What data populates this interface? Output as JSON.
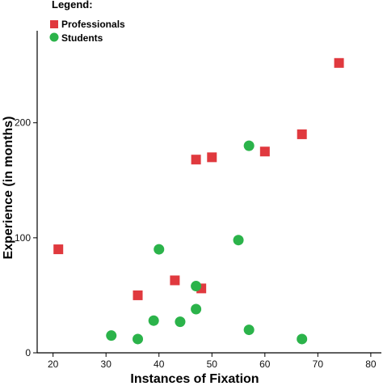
{
  "chart_data": {
    "type": "scatter",
    "title": "",
    "xlabel": "Instances of Fixation",
    "ylabel": "Experience (in months)",
    "xlim": [
      17,
      82
    ],
    "ylim": [
      0,
      280
    ],
    "xticks": [
      20,
      30,
      40,
      50,
      60,
      70,
      80
    ],
    "yticks": [
      0,
      100,
      200
    ],
    "grid": false,
    "legend": {
      "title": "Legend:",
      "placement": "top-left"
    },
    "series": [
      {
        "name": "Professionals",
        "marker": "square",
        "color": "#e0393e",
        "points": [
          {
            "x": 21,
            "y": 90
          },
          {
            "x": 36,
            "y": 50
          },
          {
            "x": 43,
            "y": 63
          },
          {
            "x": 47,
            "y": 168
          },
          {
            "x": 48,
            "y": 56
          },
          {
            "x": 50,
            "y": 170
          },
          {
            "x": 60,
            "y": 175
          },
          {
            "x": 67,
            "y": 190
          },
          {
            "x": 74,
            "y": 252
          }
        ]
      },
      {
        "name": "Students",
        "marker": "circle",
        "color": "#2bb34a",
        "points": [
          {
            "x": 31,
            "y": 15
          },
          {
            "x": 36,
            "y": 12
          },
          {
            "x": 39,
            "y": 28
          },
          {
            "x": 40,
            "y": 90
          },
          {
            "x": 44,
            "y": 27
          },
          {
            "x": 47,
            "y": 38
          },
          {
            "x": 47,
            "y": 58
          },
          {
            "x": 55,
            "y": 98
          },
          {
            "x": 57,
            "y": 180
          },
          {
            "x": 57,
            "y": 20
          },
          {
            "x": 67,
            "y": 12
          }
        ]
      }
    ]
  }
}
